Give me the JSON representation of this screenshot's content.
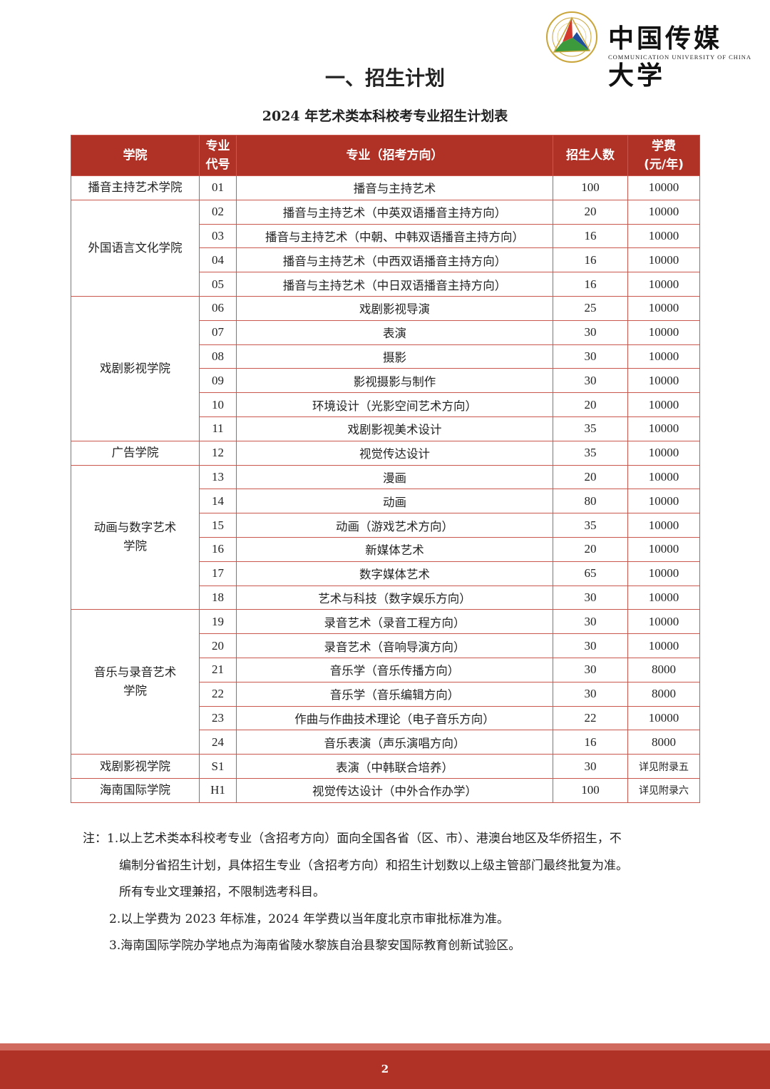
{
  "logo": {
    "name_cn": "中国传媒大学",
    "name_en": "COMMUNICATION UNIVERSITY OF CHINA",
    "seal_colors": [
      "#d33a2c",
      "#1f4e9a",
      "#3c9a3c",
      "#c9a53a"
    ]
  },
  "title": "一、招生计划",
  "subtitle": "2024 年艺术类本科校考专业招生计划表",
  "table": {
    "headers": [
      "学院",
      "专业\n代号",
      "专业（招考方向）",
      "招生人数",
      "学费\n(元/年)"
    ],
    "groups": [
      {
        "college": "播音主持艺术学院",
        "rows": [
          [
            "01",
            "播音与主持艺术",
            "100",
            "10000"
          ]
        ]
      },
      {
        "college": "外国语言文化学院",
        "rows": [
          [
            "02",
            "播音与主持艺术（中英双语播音主持方向）",
            "20",
            "10000"
          ],
          [
            "03",
            "播音与主持艺术（中朝、中韩双语播音主持方向）",
            "16",
            "10000"
          ],
          [
            "04",
            "播音与主持艺术（中西双语播音主持方向）",
            "16",
            "10000"
          ],
          [
            "05",
            "播音与主持艺术（中日双语播音主持方向）",
            "16",
            "10000"
          ]
        ]
      },
      {
        "college": "戏剧影视学院",
        "rows": [
          [
            "06",
            "戏剧影视导演",
            "25",
            "10000"
          ],
          [
            "07",
            "表演",
            "30",
            "10000"
          ],
          [
            "08",
            "摄影",
            "30",
            "10000"
          ],
          [
            "09",
            "影视摄影与制作",
            "30",
            "10000"
          ],
          [
            "10",
            "环境设计（光影空间艺术方向）",
            "20",
            "10000"
          ],
          [
            "11",
            "戏剧影视美术设计",
            "35",
            "10000"
          ]
        ]
      },
      {
        "college": "广告学院",
        "rows": [
          [
            "12",
            "视觉传达设计",
            "35",
            "10000"
          ]
        ]
      },
      {
        "college": "动画与数字艺术\n学院",
        "rows": [
          [
            "13",
            "漫画",
            "20",
            "10000"
          ],
          [
            "14",
            "动画",
            "80",
            "10000"
          ],
          [
            "15",
            "动画（游戏艺术方向）",
            "35",
            "10000"
          ],
          [
            "16",
            "新媒体艺术",
            "20",
            "10000"
          ],
          [
            "17",
            "数字媒体艺术",
            "65",
            "10000"
          ],
          [
            "18",
            "艺术与科技（数字娱乐方向）",
            "30",
            "10000"
          ]
        ]
      },
      {
        "college": "音乐与录音艺术\n学院",
        "rows": [
          [
            "19",
            "录音艺术（录音工程方向）",
            "30",
            "10000"
          ],
          [
            "20",
            "录音艺术（音响导演方向）",
            "30",
            "10000"
          ],
          [
            "21",
            "音乐学（音乐传播方向）",
            "30",
            "8000"
          ],
          [
            "22",
            "音乐学（音乐编辑方向）",
            "30",
            "8000"
          ],
          [
            "23",
            "作曲与作曲技术理论（电子音乐方向）",
            "22",
            "10000"
          ],
          [
            "24",
            "音乐表演（声乐演唱方向）",
            "16",
            "8000"
          ]
        ]
      },
      {
        "college": "戏剧影视学院",
        "rows": [
          [
            "S1",
            "表演（中韩联合培养）",
            "30",
            "详见附录五"
          ]
        ]
      },
      {
        "college": "海南国际学院",
        "rows": [
          [
            "H1",
            "视觉传达设计（中外合作办学）",
            "100",
            "详见附录六"
          ]
        ]
      }
    ]
  },
  "notes": {
    "n1a": "注：1.以上艺术类本科校考专业（含招考方向）面向全国各省（区、市）、港澳台地区及华侨招生，不",
    "n1b": "编制分省招生计划，具体招生专业（含招考方向）和招生计划数以上级主管部门最终批复为准。",
    "n1c": "所有专业文理兼招，不限制选考科目。",
    "n2": "2.以上学费为 2023 年标准，2024 年学费以当年度北京市审批标准为准。",
    "n3": "3.海南国际学院办学地点为海南省陵水黎族自治县黎安国际教育创新试验区。"
  },
  "footer": {
    "page_number": "2",
    "color": "#b03227"
  }
}
